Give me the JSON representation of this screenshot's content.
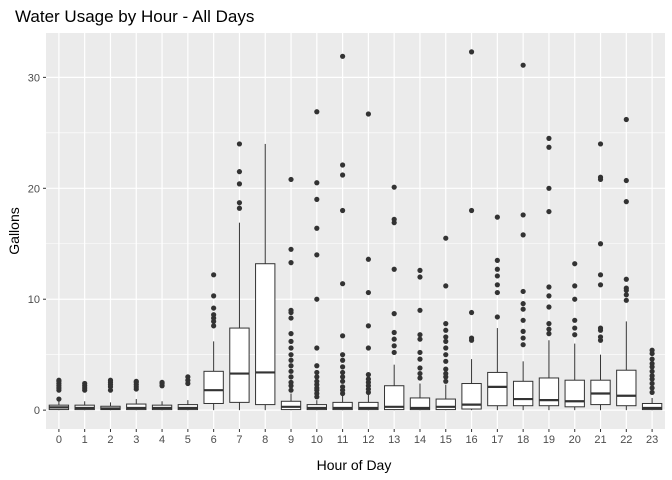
{
  "chart_data": {
    "type": "boxplot",
    "title": "Water Usage by Hour - All Days",
    "xlabel": "Hour of Day",
    "ylabel": "Gallons",
    "ylim": [
      -1.7,
      34
    ],
    "y_ticks": [
      0,
      10,
      20,
      30
    ],
    "grid": true,
    "legend": "none",
    "colors": {
      "panel": "#EBEBEB",
      "grid": "#FFFFFF",
      "box_fill": "#FFFFFF",
      "box_stroke": "#333333",
      "outlier": "#333333"
    },
    "categories": [
      "0",
      "1",
      "2",
      "3",
      "4",
      "5",
      "6",
      "7",
      "8",
      "9",
      "10",
      "11",
      "12",
      "13",
      "14",
      "15",
      "16",
      "17",
      "18",
      "19",
      "20",
      "21",
      "22",
      "23"
    ],
    "boxes": [
      {
        "min": 0,
        "q1": 0.05,
        "median": 0.25,
        "q3": 0.45,
        "max": 0.8,
        "outliers": [
          1.0,
          1.8,
          2.0,
          2.2,
          2.4,
          2.6,
          2.7
        ]
      },
      {
        "min": 0,
        "q1": 0.05,
        "median": 0.2,
        "q3": 0.45,
        "max": 0.8,
        "outliers": [
          1.8,
          2.0,
          2.2,
          2.4
        ]
      },
      {
        "min": 0,
        "q1": 0.05,
        "median": 0.15,
        "q3": 0.35,
        "max": 0.7,
        "outliers": [
          1.8,
          2.1,
          2.3,
          2.5,
          2.7
        ]
      },
      {
        "min": 0,
        "q1": 0.05,
        "median": 0.2,
        "q3": 0.55,
        "max": 1.0,
        "outliers": [
          1.9,
          2.1,
          2.3,
          2.5,
          2.6
        ]
      },
      {
        "min": 0,
        "q1": 0.05,
        "median": 0.2,
        "q3": 0.45,
        "max": 0.8,
        "outliers": [
          2.2,
          2.4,
          2.5
        ]
      },
      {
        "min": 0,
        "q1": 0.05,
        "median": 0.2,
        "q3": 0.5,
        "max": 0.9,
        "outliers": [
          2.4,
          2.7,
          3.0
        ]
      },
      {
        "min": 0,
        "q1": 0.6,
        "median": 1.8,
        "q3": 3.5,
        "max": 6.2,
        "outliers": [
          7.6,
          8.0,
          8.3,
          8.6,
          9.2,
          10.3,
          12.2
        ]
      },
      {
        "min": 0,
        "q1": 0.7,
        "median": 3.3,
        "q3": 7.4,
        "max": 16.9,
        "outliers": [
          18.2,
          18.7,
          20.4,
          21.5,
          24.0
        ]
      },
      {
        "min": 0,
        "q1": 0.5,
        "median": 3.4,
        "q3": 13.2,
        "max": 24.0,
        "outliers": []
      },
      {
        "min": 0,
        "q1": 0.05,
        "median": 0.3,
        "q3": 0.8,
        "max": 1.5,
        "outliers": [
          1.8,
          2.2,
          2.5,
          3.0,
          3.5,
          4.0,
          4.5,
          5.0,
          5.6,
          6.2,
          6.9,
          8.3,
          8.8,
          9.0,
          13.3,
          14.5,
          20.8
        ]
      },
      {
        "min": 0,
        "q1": 0.05,
        "median": 0.2,
        "q3": 0.5,
        "max": 0.9,
        "outliers": [
          1.2,
          1.5,
          1.8,
          2.0,
          2.3,
          2.6,
          3.0,
          3.4,
          4.0,
          5.6,
          10.0,
          14.0,
          16.4,
          19.0,
          20.5,
          26.9
        ]
      },
      {
        "min": 0,
        "q1": 0.05,
        "median": 0.2,
        "q3": 0.7,
        "max": 1.3,
        "outliers": [
          1.5,
          1.8,
          2.1,
          2.6,
          3.0,
          3.4,
          3.9,
          4.5,
          5.0,
          6.7,
          11.4,
          18.0,
          21.2,
          22.1,
          31.9
        ]
      },
      {
        "min": 0,
        "q1": 0.05,
        "median": 0.2,
        "q3": 0.7,
        "max": 1.4,
        "outliers": [
          1.6,
          1.9,
          2.2,
          2.5,
          2.8,
          3.2,
          5.6,
          7.6,
          10.6,
          13.6,
          26.7
        ]
      },
      {
        "min": 0,
        "q1": 0.05,
        "median": 0.3,
        "q3": 2.2,
        "max": 4.1,
        "outliers": [
          5.2,
          5.8,
          6.4,
          7.0,
          8.7,
          12.7,
          16.9,
          17.2,
          20.1
        ]
      },
      {
        "min": 0,
        "q1": 0.05,
        "median": 0.2,
        "q3": 1.1,
        "max": 2.4,
        "outliers": [
          2.9,
          3.3,
          3.8,
          4.6,
          5.2,
          6.4,
          6.8,
          9.0,
          12.0,
          12.6
        ]
      },
      {
        "min": 0,
        "q1": 0.05,
        "median": 0.3,
        "q3": 1.0,
        "max": 2.3,
        "outliers": [
          2.6,
          3.0,
          3.3,
          3.7,
          4.4,
          5.0,
          5.6,
          6.2,
          6.6,
          7.2,
          7.8,
          11.2,
          15.5
        ]
      },
      {
        "min": 0,
        "q1": 0.1,
        "median": 0.5,
        "q3": 2.4,
        "max": 4.6,
        "outliers": [
          6.3,
          6.5,
          8.8,
          18.0,
          32.3
        ]
      },
      {
        "min": 0,
        "q1": 0.4,
        "median": 2.1,
        "q3": 3.4,
        "max": 7.4,
        "outliers": [
          8.4,
          10.6,
          11.3,
          12.1,
          12.7,
          13.5,
          17.4
        ]
      },
      {
        "min": 0,
        "q1": 0.4,
        "median": 1.0,
        "q3": 2.6,
        "max": 4.4,
        "outliers": [
          5.9,
          6.5,
          7.1,
          8.1,
          9.1,
          9.6,
          10.7,
          15.8,
          17.6,
          31.1
        ]
      },
      {
        "min": 0,
        "q1": 0.4,
        "median": 0.9,
        "q3": 2.9,
        "max": 6.3,
        "outliers": [
          6.9,
          7.3,
          7.8,
          9.3,
          10.3,
          11.1,
          17.9,
          20.0,
          23.7,
          24.5
        ]
      },
      {
        "min": 0,
        "q1": 0.3,
        "median": 0.8,
        "q3": 2.7,
        "max": 6.0,
        "outliers": [
          6.8,
          7.4,
          8.1,
          10.0,
          11.2,
          13.2
        ]
      },
      {
        "min": 0,
        "q1": 0.5,
        "median": 1.5,
        "q3": 2.7,
        "max": 5.0,
        "outliers": [
          6.3,
          6.6,
          7.2,
          7.4,
          11.3,
          12.2,
          15.0,
          20.8,
          21.0,
          24.0
        ]
      },
      {
        "min": 0,
        "q1": 0.4,
        "median": 1.3,
        "q3": 3.6,
        "max": 8.0,
        "outliers": [
          9.9,
          10.4,
          10.8,
          11.0,
          11.8,
          18.8,
          20.7,
          26.2
        ]
      },
      {
        "min": 0,
        "q1": 0.05,
        "median": 0.2,
        "q3": 0.6,
        "max": 1.1,
        "outliers": [
          1.6,
          2.0,
          2.4,
          2.8,
          3.1,
          3.5,
          3.9,
          4.2,
          4.6,
          5.1,
          5.4
        ]
      }
    ]
  }
}
